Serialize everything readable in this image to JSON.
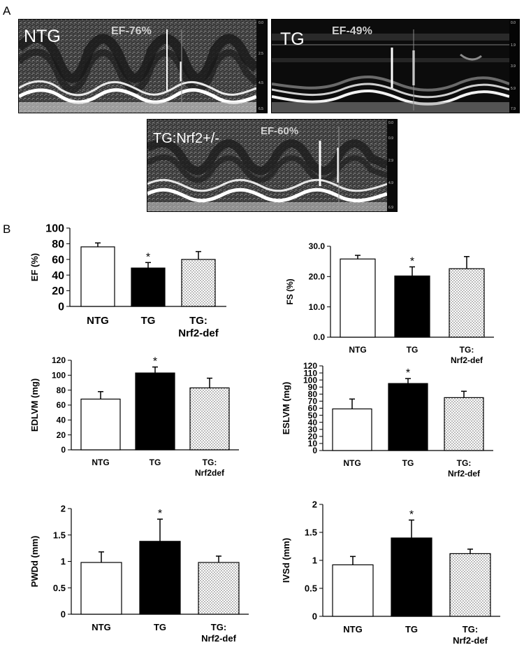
{
  "panel_a_label": "A",
  "panel_b_label": "B",
  "echo_images": [
    {
      "label": "NTG",
      "ef_text": "EF-76%",
      "depth_ticks": [
        "0.0",
        "2.5",
        "4.5",
        "6.5"
      ]
    },
    {
      "label": "TG",
      "ef_text": "EF-49%",
      "depth_ticks": [
        "0.0",
        "1.9",
        "3.9",
        "5.9",
        "7.9"
      ]
    },
    {
      "label": "TG:Nrf2+/-",
      "ef_text": "EF-60%",
      "depth_ticks": [
        "0.0",
        "0.9",
        "2.9",
        "4.9",
        "6.9"
      ]
    }
  ],
  "chart_data": [
    {
      "type": "bar",
      "ylabel": "EF (%)",
      "categories": [
        "NTG",
        "TG",
        "TG: Nrf2-def"
      ],
      "values": [
        76,
        49,
        60
      ],
      "errors": [
        5,
        7,
        10
      ],
      "significance": [
        "",
        "*",
        ""
      ],
      "ylim": [
        0,
        100
      ],
      "yticks": [
        "0",
        "20",
        "40",
        "60",
        "80",
        "100"
      ],
      "fills": [
        "white",
        "black",
        "dots"
      ]
    },
    {
      "type": "bar",
      "ylabel": "FS (%)",
      "categories": [
        "NTG",
        "TG",
        "TG: Nrf2-def"
      ],
      "values": [
        25.8,
        20.2,
        22.6
      ],
      "errors": [
        1.2,
        3.0,
        4.0
      ],
      "significance": [
        "",
        "*",
        ""
      ],
      "ylim": [
        0,
        30
      ],
      "yticks": [
        "0.0",
        "10.0",
        "20.0",
        "30.0"
      ],
      "fills": [
        "white",
        "black",
        "dots"
      ]
    },
    {
      "type": "bar",
      "ylabel": "EDLVM (mg)",
      "categories": [
        "NTG",
        "TG",
        "TG: Nrf2def"
      ],
      "values": [
        68,
        103,
        83
      ],
      "errors": [
        10,
        8,
        13
      ],
      "significance": [
        "",
        "*",
        ""
      ],
      "ylim": [
        0,
        120
      ],
      "yticks": [
        "0",
        "20",
        "40",
        "60",
        "80",
        "100",
        "120"
      ],
      "fills": [
        "white",
        "black",
        "dots"
      ]
    },
    {
      "type": "bar",
      "ylabel": "ESLVM (mg)",
      "categories": [
        "NTG",
        "TG",
        "TG: Nrf2-def"
      ],
      "values": [
        59,
        95,
        75
      ],
      "errors": [
        14,
        7,
        9
      ],
      "significance": [
        "",
        "*",
        ""
      ],
      "ylim": [
        0,
        120
      ],
      "yticks": [
        "0",
        "10",
        "20",
        "30",
        "40",
        "50",
        "60",
        "70",
        "80",
        "90",
        "100",
        "110",
        "120"
      ],
      "fills": [
        "white",
        "black",
        "dots"
      ]
    },
    {
      "type": "bar",
      "ylabel": "PWDd (mm)",
      "categories": [
        "NTG",
        "TG",
        "TG: Nrf2-def"
      ],
      "values": [
        0.98,
        1.38,
        0.98
      ],
      "errors": [
        0.2,
        0.42,
        0.12
      ],
      "significance": [
        "",
        "*",
        ""
      ],
      "ylim": [
        0,
        2
      ],
      "yticks": [
        "0",
        "0.5",
        "1",
        "1.5",
        "2"
      ],
      "fills": [
        "white",
        "black",
        "dots"
      ]
    },
    {
      "type": "bar",
      "ylabel": "IVSd (mm)",
      "categories": [
        "NTG",
        "TG",
        "TG: Nrf2-def"
      ],
      "values": [
        0.92,
        1.4,
        1.12
      ],
      "errors": [
        0.15,
        0.32,
        0.08
      ],
      "significance": [
        "",
        "*",
        ""
      ],
      "ylim": [
        0,
        2
      ],
      "yticks": [
        "0",
        "0.5",
        "1",
        "1.5",
        "2"
      ],
      "fills": [
        "white",
        "black",
        "dots"
      ]
    }
  ]
}
